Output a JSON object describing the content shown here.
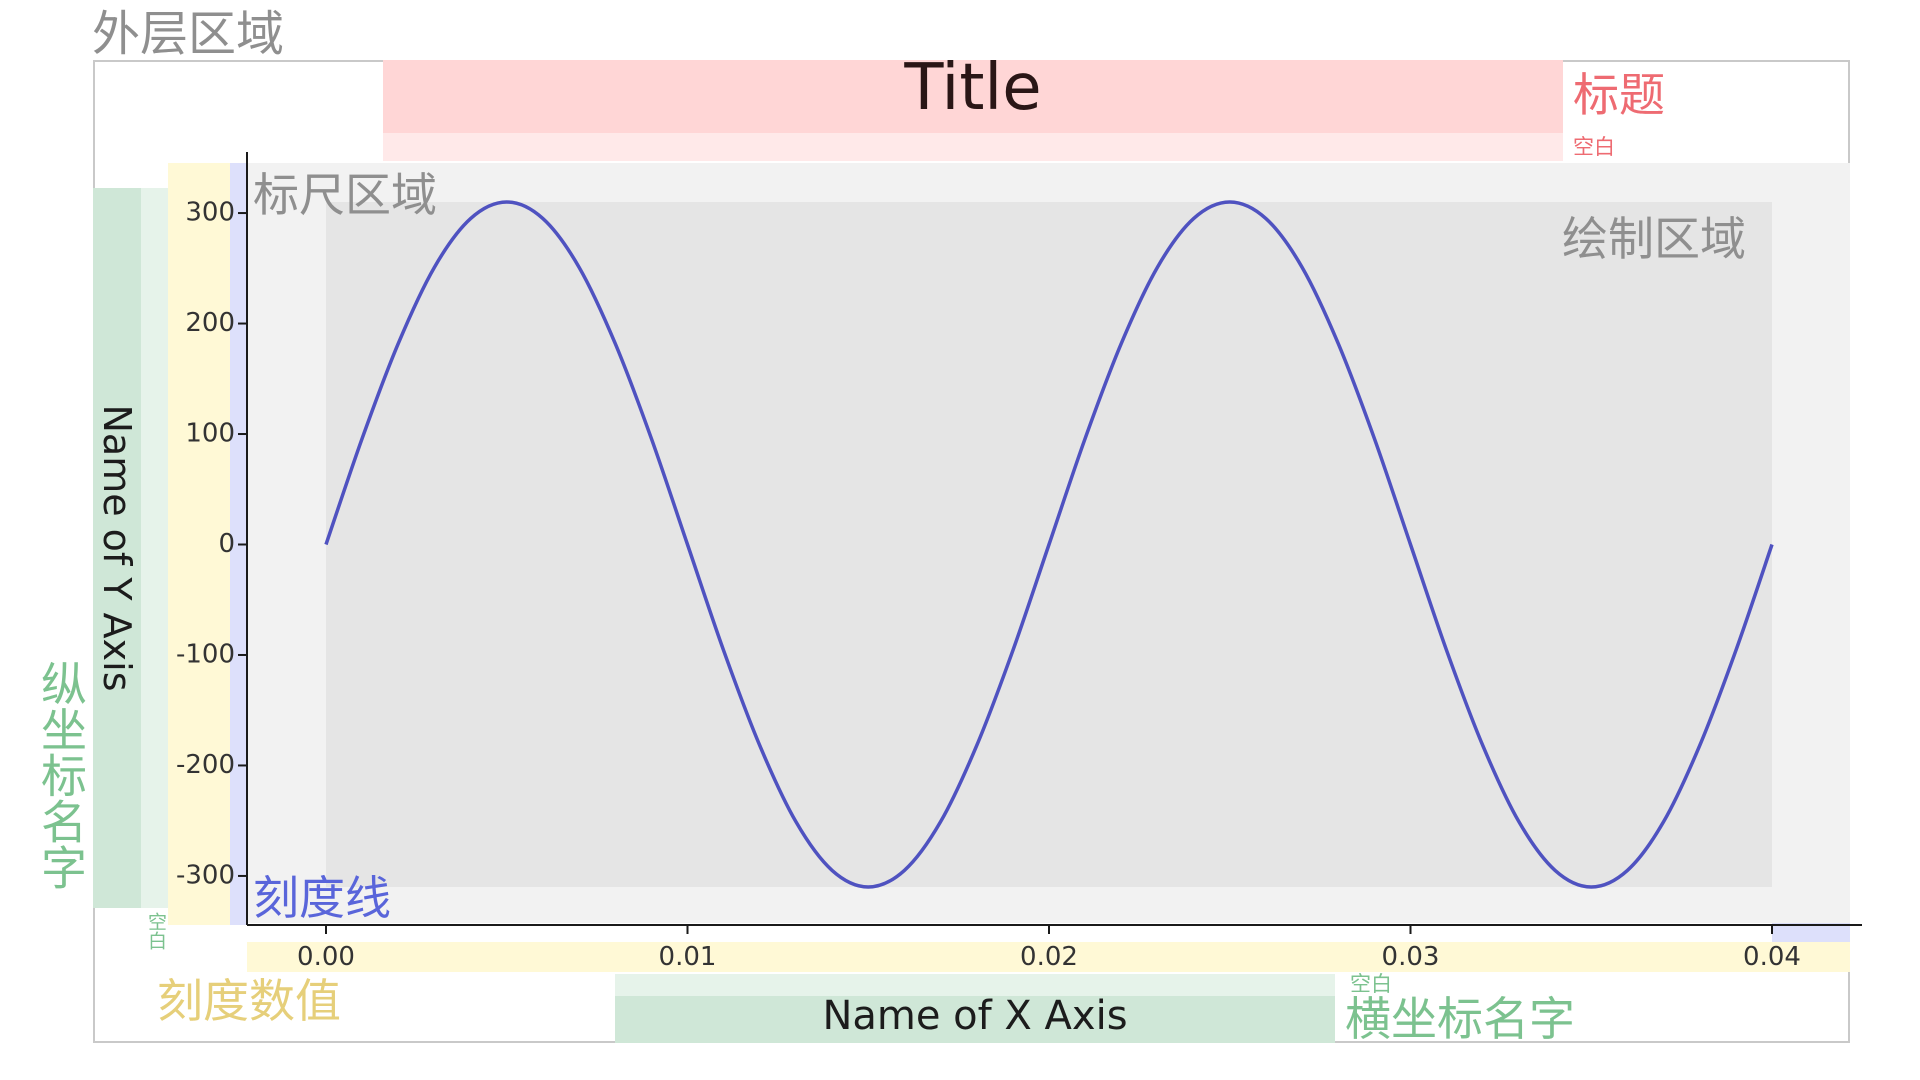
{
  "regions": {
    "outer": "外层区域",
    "title": "标题",
    "title_gap": "空白",
    "ruler": "标尺区域",
    "plot": "绘制区域",
    "tick_line": "刻度线",
    "tick_value": "刻度数值",
    "y_axis_name": "纵坐标名字",
    "y_axis_gap": "空白",
    "x_axis_name": "横坐标名字",
    "x_axis_gap": "空白"
  },
  "colors": {
    "line": "#4f52c0",
    "title_band": "#ffd6d6",
    "axis_name_band": "#cfe7d7",
    "tick_value_band": "#fff9d6",
    "tick_line_band": "#dde0fb",
    "ruler_bg": "#f2f2f2",
    "plot_bg": "#e5e5e5"
  },
  "chart_data": {
    "type": "line",
    "title": "Title",
    "xlabel": "Name of X Axis",
    "ylabel": "Name of Y Axis",
    "xlim": [
      0,
      0.04
    ],
    "ylim": [
      -310,
      310
    ],
    "x_ticks": [
      0.0,
      0.01,
      0.02,
      0.03,
      0.04
    ],
    "x_tick_labels": [
      "0.00",
      "0.01",
      "0.02",
      "0.03",
      "0.04"
    ],
    "y_ticks": [
      300,
      200,
      100,
      0,
      -100,
      -200,
      -300
    ],
    "y_tick_labels": [
      "300",
      "200",
      "100",
      "0",
      "-100",
      "-200",
      "-300"
    ],
    "grid": false,
    "series": [
      {
        "x": [
          0.0,
          0.001,
          0.002,
          0.003,
          0.004,
          0.005,
          0.006,
          0.007,
          0.008,
          0.009,
          0.01,
          0.011,
          0.012,
          0.013,
          0.014,
          0.015,
          0.016,
          0.017,
          0.018,
          0.019,
          0.02,
          0.021,
          0.022,
          0.023,
          0.024,
          0.025,
          0.026,
          0.027,
          0.028,
          0.029,
          0.03,
          0.031,
          0.032,
          0.033,
          0.034,
          0.035,
          0.036,
          0.037,
          0.038,
          0.039,
          0.04
        ],
        "y": [
          0,
          96,
          182,
          251,
          295,
          310,
          295,
          251,
          182,
          96,
          0,
          -96,
          -182,
          -251,
          -295,
          -310,
          -295,
          -251,
          -182,
          -96,
          0,
          96,
          182,
          251,
          295,
          310,
          295,
          251,
          182,
          96,
          0,
          -96,
          -182,
          -251,
          -295,
          -310,
          -295,
          -251,
          -182,
          -96,
          0
        ]
      }
    ]
  }
}
